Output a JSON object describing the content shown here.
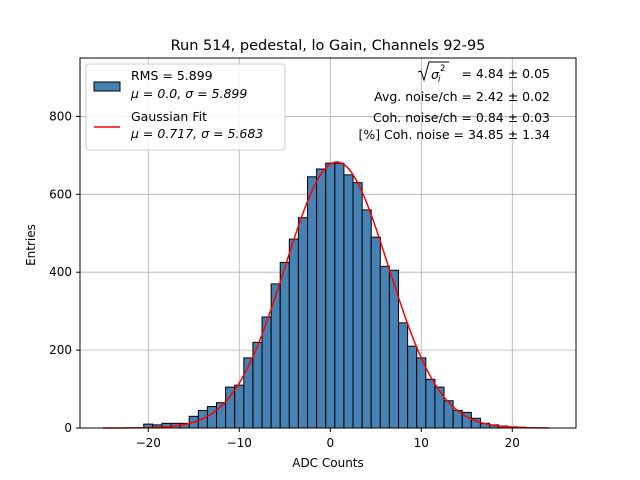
{
  "chart_data": {
    "type": "bar",
    "title": "Run 514, pedestal, lo Gain, Channels 92-95",
    "xlabel": "ADC Counts",
    "ylabel": "Entries",
    "xlim": [
      -27.5,
      27
    ],
    "ylim": [
      0,
      950
    ],
    "xticks": [
      -20,
      -10,
      0,
      10,
      20
    ],
    "yticks": [
      0,
      200,
      400,
      600,
      800
    ],
    "grid": true,
    "legend_position": "top-left",
    "bin_width": 1,
    "bins": [
      {
        "x": -20,
        "count": 10
      },
      {
        "x": -19,
        "count": 8
      },
      {
        "x": -18,
        "count": 12
      },
      {
        "x": -17,
        "count": 12
      },
      {
        "x": -16,
        "count": 12
      },
      {
        "x": -15,
        "count": 30
      },
      {
        "x": -14,
        "count": 45
      },
      {
        "x": -13,
        "count": 55
      },
      {
        "x": -12,
        "count": 65
      },
      {
        "x": -11,
        "count": 105
      },
      {
        "x": -10,
        "count": 110
      },
      {
        "x": -9,
        "count": 180
      },
      {
        "x": -8,
        "count": 220
      },
      {
        "x": -7,
        "count": 285
      },
      {
        "x": -6,
        "count": 370
      },
      {
        "x": -5,
        "count": 425
      },
      {
        "x": -4,
        "count": 485
      },
      {
        "x": -3,
        "count": 540
      },
      {
        "x": -2,
        "count": 645
      },
      {
        "x": -1,
        "count": 665
      },
      {
        "x": 0,
        "count": 680
      },
      {
        "x": 1,
        "count": 680
      },
      {
        "x": 2,
        "count": 650
      },
      {
        "x": 3,
        "count": 630
      },
      {
        "x": 4,
        "count": 560
      },
      {
        "x": 5,
        "count": 490
      },
      {
        "x": 6,
        "count": 415
      },
      {
        "x": 7,
        "count": 405
      },
      {
        "x": 8,
        "count": 270
      },
      {
        "x": 9,
        "count": 210
      },
      {
        "x": 10,
        "count": 180
      },
      {
        "x": 11,
        "count": 125
      },
      {
        "x": 12,
        "count": 105
      },
      {
        "x": 13,
        "count": 70
      },
      {
        "x": 14,
        "count": 45
      },
      {
        "x": 15,
        "count": 40
      },
      {
        "x": 16,
        "count": 25
      },
      {
        "x": 17,
        "count": 12
      },
      {
        "x": 18,
        "count": 8
      },
      {
        "x": 19,
        "count": 5
      },
      {
        "x": 20,
        "count": 3
      },
      {
        "x": 21,
        "count": 2
      }
    ],
    "series": [
      {
        "name": "RMS = 5.899\nμ = 0.0, σ = 5.899",
        "type": "histogram",
        "color": "#4682b4",
        "edgecolor": "#000000"
      },
      {
        "name": "Gaussian Fit\nμ = 0.717, σ = 5.683",
        "type": "line",
        "color": "#ff0000",
        "amplitude": 683,
        "mu": 0.717,
        "sigma": 5.683,
        "x_range": [
          -25,
          24
        ]
      }
    ],
    "legend": [
      {
        "line1": "RMS = 5.899",
        "line2": "μ = 0.0, σ = 5.899"
      },
      {
        "line1": "Gaussian Fit",
        "line2": "μ = 0.717, σ = 5.683"
      }
    ],
    "annotations": [
      " = 4.84 ± 0.05",
      "Avg. noise/ch = 2.42 ± 0.02",
      "Coh. noise/ch = 0.84 ± 0.03",
      "[%] Coh. noise = 34.85 ± 1.34"
    ]
  }
}
